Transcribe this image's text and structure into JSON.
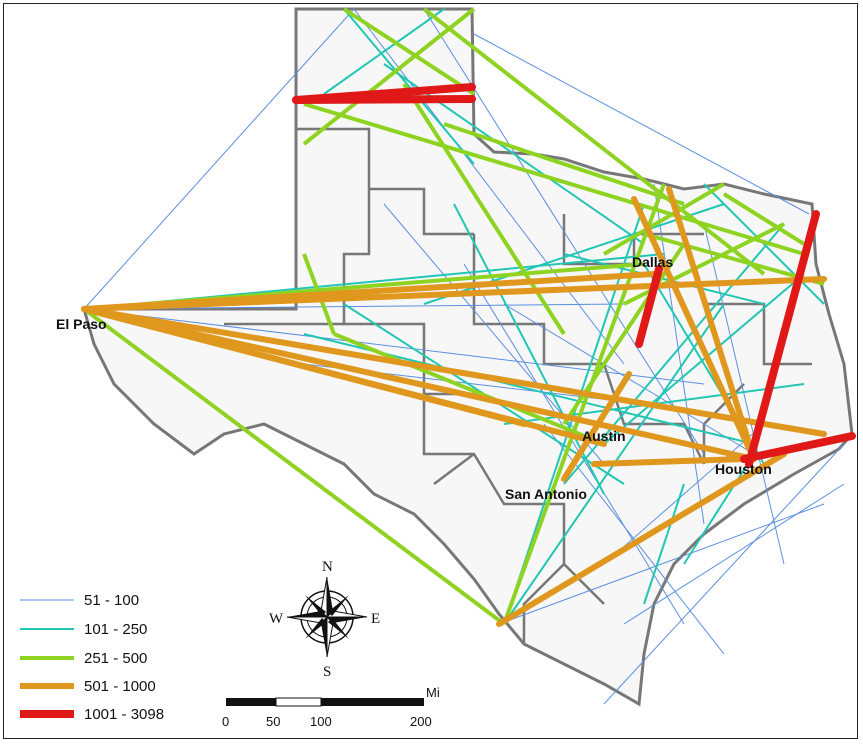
{
  "map": {
    "cities": [
      {
        "name": "El Paso"
      },
      {
        "name": "Dallas"
      },
      {
        "name": "Austin"
      },
      {
        "name": "Houston"
      },
      {
        "name": "San Antonio"
      }
    ],
    "legend": [
      {
        "range": "51 - 100",
        "color": "#5b8fe0"
      },
      {
        "range": "101 - 250",
        "color": "#22c6b4"
      },
      {
        "range": "251 - 500",
        "color": "#8fd322"
      },
      {
        "range": "501 - 1000",
        "color": "#e0971e"
      },
      {
        "range": "1001 - 3098",
        "color": "#e01818"
      }
    ],
    "compass": {
      "n": "N",
      "s": "S",
      "e": "E",
      "w": "W"
    },
    "scale": {
      "ticks": [
        "0",
        "50",
        "100",
        "200"
      ],
      "unit": "Mi"
    }
  }
}
